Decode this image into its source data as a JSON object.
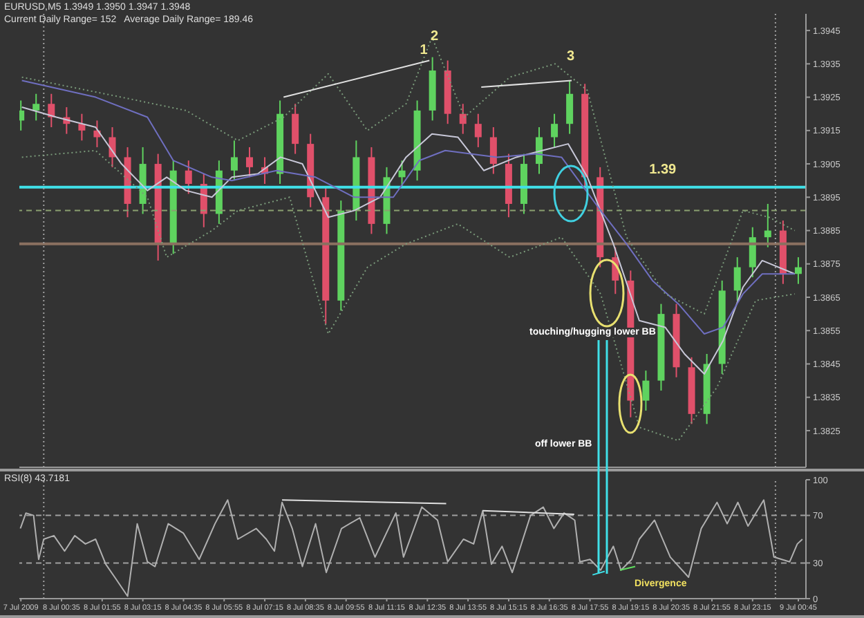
{
  "chart_data": [
    {
      "type": "candlestick",
      "title": "EURUSD,M5 1.3949 1.3950 1.3947 1.3948",
      "subtitle": "Current Daily Range= 152   Average Daily Range= 189.46",
      "x": [
        "2009-07-07T23:15",
        "2009-07-07T23:45",
        "2009-07-08T00:15",
        "2009-07-08T00:45",
        "2009-07-08T01:15",
        "2009-07-08T01:45",
        "2009-07-08T02:15",
        "2009-07-08T02:45",
        "2009-07-08T03:15",
        "2009-07-08T03:45",
        "2009-07-08T04:15",
        "2009-07-08T04:45",
        "2009-07-08T05:15",
        "2009-07-08T05:45",
        "2009-07-08T06:15",
        "2009-07-08T06:45",
        "2009-07-08T07:15",
        "2009-07-08T07:45",
        "2009-07-08T08:15",
        "2009-07-08T08:45",
        "2009-07-08T09:15",
        "2009-07-08T09:45",
        "2009-07-08T10:15",
        "2009-07-08T10:45",
        "2009-07-08T11:15",
        "2009-07-08T11:45",
        "2009-07-08T12:15",
        "2009-07-08T12:45",
        "2009-07-08T13:15",
        "2009-07-08T13:45",
        "2009-07-08T14:15",
        "2009-07-08T14:45",
        "2009-07-08T15:15",
        "2009-07-08T15:45",
        "2009-07-08T16:15",
        "2009-07-08T16:45",
        "2009-07-08T17:15",
        "2009-07-08T17:45",
        "2009-07-08T18:15",
        "2009-07-08T18:45",
        "2009-07-08T19:15",
        "2009-07-08T19:45",
        "2009-07-08T20:15",
        "2009-07-08T20:45",
        "2009-07-08T21:15",
        "2009-07-08T21:45",
        "2009-07-08T22:15",
        "2009-07-08T22:45",
        "2009-07-08T23:15",
        "2009-07-08T23:45",
        "2009-07-09T00:15",
        "2009-07-09T00:45"
      ],
      "ohlc": [
        [
          1.3918,
          1.3924,
          1.3915,
          1.3921
        ],
        [
          1.3921,
          1.3926,
          1.3918,
          1.3923
        ],
        [
          1.3923,
          1.3926,
          1.3916,
          1.3919
        ],
        [
          1.3919,
          1.3922,
          1.3914,
          1.3917
        ],
        [
          1.3917,
          1.392,
          1.3912,
          1.3915
        ],
        [
          1.3915,
          1.3918,
          1.391,
          1.3913
        ],
        [
          1.3913,
          1.3916,
          1.3904,
          1.3907
        ],
        [
          1.3907,
          1.391,
          1.3889,
          1.3893
        ],
        [
          1.3893,
          1.391,
          1.389,
          1.3905
        ],
        [
          1.3905,
          1.3908,
          1.3876,
          1.3881
        ],
        [
          1.3881,
          1.3906,
          1.3878,
          1.3903
        ],
        [
          1.3903,
          1.3906,
          1.3896,
          1.3899
        ],
        [
          1.3899,
          1.3902,
          1.3886,
          1.389
        ],
        [
          1.389,
          1.3906,
          1.3887,
          1.3903
        ],
        [
          1.3903,
          1.3912,
          1.39,
          1.3907
        ],
        [
          1.3907,
          1.391,
          1.3901,
          1.3904
        ],
        [
          1.3904,
          1.3907,
          1.3899,
          1.3902
        ],
        [
          1.3902,
          1.3924,
          1.3899,
          1.392
        ],
        [
          1.392,
          1.3923,
          1.3908,
          1.3911
        ],
        [
          1.3911,
          1.3914,
          1.3892,
          1.3895
        ],
        [
          1.3895,
          1.3898,
          1.3857,
          1.3864
        ],
        [
          1.3864,
          1.3894,
          1.3861,
          1.3891
        ],
        [
          1.3891,
          1.3912,
          1.3888,
          1.3907
        ],
        [
          1.3907,
          1.391,
          1.3884,
          1.3887
        ],
        [
          1.3887,
          1.3904,
          1.3884,
          1.3901
        ],
        [
          1.3901,
          1.3906,
          1.3898,
          1.3903
        ],
        [
          1.3903,
          1.3924,
          1.39,
          1.3921
        ],
        [
          1.3921,
          1.3937,
          1.3918,
          1.3933
        ],
        [
          1.3933,
          1.3936,
          1.3917,
          1.392
        ],
        [
          1.392,
          1.3923,
          1.3914,
          1.3917
        ],
        [
          1.3917,
          1.392,
          1.391,
          1.3913
        ],
        [
          1.3913,
          1.3916,
          1.3902,
          1.3905
        ],
        [
          1.3905,
          1.3908,
          1.3889,
          1.3893
        ],
        [
          1.3893,
          1.3908,
          1.389,
          1.3905
        ],
        [
          1.3905,
          1.3916,
          1.3902,
          1.3913
        ],
        [
          1.3913,
          1.392,
          1.391,
          1.3917
        ],
        [
          1.3917,
          1.393,
          1.3914,
          1.3926
        ],
        [
          1.3926,
          1.3929,
          1.3898,
          1.3901
        ],
        [
          1.3901,
          1.3904,
          1.3874,
          1.3877
        ],
        [
          1.3877,
          1.388,
          1.3866,
          1.387
        ],
        [
          1.387,
          1.3873,
          1.3829,
          1.3834
        ],
        [
          1.3834,
          1.3843,
          1.3831,
          1.384
        ],
        [
          1.384,
          1.3863,
          1.3837,
          1.386
        ],
        [
          1.386,
          1.3863,
          1.3841,
          1.3844
        ],
        [
          1.3844,
          1.3847,
          1.3827,
          1.383
        ],
        [
          1.383,
          1.3848,
          1.3827,
          1.3845
        ],
        [
          1.3845,
          1.387,
          1.3842,
          1.3867
        ],
        [
          1.3867,
          1.3877,
          1.3864,
          1.3874
        ],
        [
          1.3874,
          1.3886,
          1.3871,
          1.3883
        ],
        [
          1.3883,
          1.3893,
          1.388,
          1.3885
        ],
        [
          1.3885,
          1.3888,
          1.3869,
          1.3872
        ],
        [
          1.3872,
          1.3877,
          1.3869,
          1.3874
        ]
      ],
      "colors": [
        "#5fd35f",
        "#5fd35f",
        "#e0506a",
        "#e0506a",
        "#e0506a",
        "#e0506a",
        "#e0506a",
        "#e0506a",
        "#5fd35f",
        "#e0506a",
        "#5fd35f",
        "#e0506a",
        "#e0506a",
        "#5fd35f",
        "#5fd35f",
        "#e0506a",
        "#e0506a",
        "#5fd35f",
        "#e0506a",
        "#e0506a",
        "#e0506a",
        "#5fd35f",
        "#5fd35f",
        "#e0506a",
        "#5fd35f",
        "#5fd35f",
        "#5fd35f",
        "#5fd35f",
        "#e0506a",
        "#e0506a",
        "#e0506a",
        "#e0506a",
        "#e0506a",
        "#5fd35f",
        "#5fd35f",
        "#5fd35f",
        "#5fd35f",
        "#e0506a",
        "#e0506a",
        "#e0506a",
        "#e0506a",
        "#5fd35f",
        "#5fd35f",
        "#e0506a",
        "#e0506a",
        "#5fd35f",
        "#5fd35f",
        "#5fd35f",
        "#5fd35f",
        "#5fd35f",
        "#e0506a",
        "#5fd35f"
      ],
      "series": [
        {
          "type": "line",
          "color": "#c8c8d8",
          "x": [
            "2009-07-07T23:17",
            "2009-07-08T00:25",
            "2009-07-08T01:42",
            "2009-07-08T02:33",
            "2009-07-08T03:24",
            "2009-07-08T04:02",
            "2009-07-08T04:40",
            "2009-07-08T05:31",
            "2009-07-08T06:10",
            "2009-07-08T07:01",
            "2009-07-08T07:46",
            "2009-07-08T08:29",
            "2009-07-08T09:20",
            "2009-07-08T10:11",
            "2009-07-08T11:02",
            "2009-07-08T11:53",
            "2009-07-08T12:44",
            "2009-07-08T13:35",
            "2009-07-08T14:26",
            "2009-07-08T15:30",
            "2009-07-08T16:21",
            "2009-07-08T17:12",
            "2009-07-08T17:50",
            "2009-07-08T18:41",
            "2009-07-08T19:32",
            "2009-07-08T20:23",
            "2009-07-08T21:01",
            "2009-07-08T21:40",
            "2009-07-08T22:17",
            "2009-07-08T22:56",
            "2009-07-08T23:34",
            "2009-07-09T00:38"
          ],
          "values": [
            1.3922,
            1.3919,
            1.3916,
            1.3905,
            1.3897,
            1.3901,
            1.3897,
            1.3895,
            1.3901,
            1.3902,
            1.3907,
            1.3905,
            1.3889,
            1.3891,
            1.3895,
            1.3907,
            1.3914,
            1.3913,
            1.3903,
            1.3907,
            1.3909,
            1.3911,
            1.3901,
            1.3881,
            1.3858,
            1.3856,
            1.3848,
            1.3842,
            1.3852,
            1.3868,
            1.3876,
            1.3872
          ]
        },
        {
          "type": "line",
          "color": "#6f6fc0",
          "x": [
            "2009-07-07T23:17",
            "2009-07-08T01:42",
            "2009-07-08T03:24",
            "2009-07-08T04:15",
            "2009-07-08T05:31",
            "2009-07-08T06:10",
            "2009-07-08T07:38",
            "2009-07-08T08:55",
            "2009-07-08T10:11",
            "2009-07-08T11:28",
            "2009-07-08T12:19",
            "2009-07-08T13:10",
            "2009-07-08T14:52",
            "2009-07-08T16:08",
            "2009-07-08T16:59",
            "2009-07-08T18:16",
            "2009-07-08T19:07",
            "2009-07-08T19:58",
            "2009-07-08T20:49",
            "2009-07-08T21:40",
            "2009-07-08T22:17",
            "2009-07-08T22:56",
            "2009-07-08T23:34",
            "2009-07-09T00:38"
          ],
          "values": [
            1.393,
            1.3925,
            1.3919,
            1.3906,
            1.3901,
            1.39,
            1.3903,
            1.3901,
            1.3895,
            1.3895,
            1.3906,
            1.3909,
            1.3907,
            1.3908,
            1.3907,
            1.3891,
            1.3881,
            1.387,
            1.3863,
            1.3854,
            1.3856,
            1.3866,
            1.3872,
            1.3872
          ]
        },
        {
          "type": "line",
          "color": "#7a9a7a",
          "line_style": "dotted",
          "x": [
            "2009-07-07T23:17",
            "2009-07-08T02:33",
            "2009-07-08T04:40",
            "2009-07-08T06:22",
            "2009-07-08T07:52",
            "2009-07-08T09:20",
            "2009-07-08T10:37",
            "2009-07-08T11:53",
            "2009-07-08T12:44",
            "2009-07-08T13:48",
            "2009-07-08T15:17",
            "2009-07-08T16:46",
            "2009-07-08T17:50",
            "2009-07-08T19:07",
            "2009-07-08T20:23",
            "2009-07-08T21:40",
            "2009-07-08T22:56",
            "2009-07-08T23:47",
            "2009-07-09T00:38"
          ],
          "values": [
            1.3931,
            1.3925,
            1.3921,
            1.3912,
            1.3919,
            1.3932,
            1.3915,
            1.3923,
            1.3943,
            1.3919,
            1.3931,
            1.3935,
            1.3927,
            1.3883,
            1.3866,
            1.386,
            1.3891,
            1.3889,
            1.3885
          ]
        },
        {
          "type": "line",
          "color": "#7a9a7a",
          "line_style": "dotted",
          "x": [
            "2009-07-07T23:17",
            "2009-07-08T01:42",
            "2009-07-08T03:24",
            "2009-07-08T04:02",
            "2009-07-08T05:31",
            "2009-07-08T06:22",
            "2009-07-08T08:04",
            "2009-07-08T09:20",
            "2009-07-08T10:37",
            "2009-07-08T11:53",
            "2009-07-08T13:35",
            "2009-07-08T15:17",
            "2009-07-08T16:59",
            "2009-07-08T18:16",
            "2009-07-08T19:32",
            "2009-07-08T20:49",
            "2009-07-08T22:05",
            "2009-07-08T23:21",
            "2009-07-09T00:38"
          ],
          "values": [
            1.3907,
            1.3909,
            1.3895,
            1.3877,
            1.3885,
            1.3891,
            1.3895,
            1.3854,
            1.3874,
            1.3881,
            1.3887,
            1.3877,
            1.3883,
            1.3866,
            1.3826,
            1.3822,
            1.3838,
            1.3864,
            1.3866
          ]
        },
        {
          "type": "line",
          "color": "#e0e0e0",
          "x": [
            "2009-07-08T07:52",
            "2009-07-08T12:39"
          ],
          "values": [
            1.3925,
            1.3936
          ]
        },
        {
          "type": "line",
          "color": "#e0e0e0",
          "x": [
            "2009-07-08T14:21",
            "2009-07-08T17:19"
          ],
          "values": [
            1.3928,
            1.393
          ]
        }
      ],
      "xlim": [
        "2009-07-07T23:12",
        "2009-07-09T01:00"
      ],
      "ylim": [
        1.3814,
        1.395
      ],
      "yticks": [
        1.3825,
        1.3835,
        1.3845,
        1.3855,
        1.3865,
        1.3875,
        1.3885,
        1.3895,
        1.3905,
        1.3915,
        1.3925,
        1.3935,
        1.3945
      ],
      "tick_labels": "y",
      "ref_lines": [
        {
          "axis": "y",
          "value": 1.3898,
          "color": "#40e0e8"
        },
        {
          "axis": "y",
          "value": 1.3891,
          "color": "#8aa070",
          "line_style": "dashed"
        },
        {
          "axis": "y",
          "value": 1.3881,
          "color": "#8a7060"
        },
        {
          "axis": "x",
          "value": "2009-07-08T00:00",
          "color": "#a0a0a0",
          "line_style": "dotted"
        },
        {
          "axis": "x",
          "value": "2009-07-09T00:00",
          "color": "#a0a0a0",
          "line_style": "dotted"
        }
      ],
      "annotations": [
        {
          "text": "1",
          "x": "2009-07-08T12:28",
          "y": 1.3936
        },
        {
          "text": "2",
          "x": "2009-07-08T12:49",
          "y": 1.394
        },
        {
          "text": "3",
          "x": "2009-07-08T17:17",
          "y": 1.3934
        },
        {
          "text": "1.39",
          "x": "2009-07-08T20:18",
          "y": 1.39
        },
        "touching/hugging lower BB",
        "off lower BB"
      ]
    },
    {
      "type": "line",
      "title": "RSI(8) 43.7181",
      "series": [
        {
          "color": "#b0b0b0",
          "x": [
            "2009-07-07T23:14",
            "2009-07-07T23:25",
            "2009-07-07T23:40",
            "2009-07-07T23:50",
            "2009-07-08T00:00",
            "2009-07-08T00:20",
            "2009-07-08T00:41",
            "2009-07-08T01:01",
            "2009-07-08T01:22",
            "2009-07-08T01:42",
            "2009-07-08T02:02",
            "2009-07-08T02:23",
            "2009-07-08T02:45",
            "2009-07-08T03:04",
            "2009-07-08T03:24",
            "2009-07-08T03:39",
            "2009-07-08T04:05",
            "2009-07-08T04:35",
            "2009-07-08T05:06",
            "2009-07-08T05:37",
            "2009-07-08T06:02",
            "2009-07-08T06:22",
            "2009-07-08T06:58",
            "2009-07-08T07:18",
            "2009-07-08T07:34",
            "2009-07-08T07:49",
            "2009-07-08T08:09",
            "2009-07-08T08:29",
            "2009-07-08T08:55",
            "2009-07-08T09:16",
            "2009-07-08T09:46",
            "2009-07-08T10:22",
            "2009-07-08T10:52",
            "2009-07-08T11:33",
            "2009-07-08T11:48",
            "2009-07-08T12:24",
            "2009-07-08T12:55",
            "2009-07-08T13:15",
            "2009-07-08T13:46",
            "2009-07-08T14:06",
            "2009-07-08T14:24",
            "2009-07-08T14:41",
            "2009-07-08T15:02",
            "2009-07-08T15:22",
            "2009-07-08T15:58",
            "2009-07-08T16:23",
            "2009-07-08T16:44",
            "2009-07-08T17:04",
            "2009-07-08T17:25",
            "2009-07-08T17:35",
            "2009-07-08T17:55",
            "2009-07-08T18:16",
            "2009-07-08T18:41",
            "2009-07-08T18:56",
            "2009-07-08T19:17",
            "2009-07-08T19:32",
            "2009-07-08T20:02",
            "2009-07-08T20:33",
            "2009-07-08T21:09",
            "2009-07-08T21:34",
            "2009-07-08T22:05",
            "2009-07-08T22:25",
            "2009-07-08T22:46",
            "2009-07-08T23:06",
            "2009-07-08T23:37",
            "2009-07-08T23:57",
            "2009-07-09T00:28",
            "2009-07-09T00:43",
            "2009-07-09T00:53"
          ],
          "values": [
            59,
            72,
            70,
            33,
            50,
            53,
            40,
            53,
            46,
            50,
            29,
            16,
            2,
            63,
            31,
            27,
            63,
            55,
            33,
            63,
            83,
            50,
            59,
            50,
            40,
            81,
            59,
            27,
            63,
            22,
            59,
            68,
            35,
            72,
            35,
            77,
            66,
            31,
            50,
            46,
            74,
            29,
            44,
            22,
            70,
            77,
            59,
            72,
            66,
            31,
            33,
            24,
            44,
            24,
            33,
            50,
            66,
            35,
            18,
            59,
            81,
            63,
            81,
            61,
            83,
            35,
            31,
            46,
            50
          ]
        },
        {
          "color": "#e0e0e0",
          "x": [
            "2009-07-08T07:49",
            "2009-07-08T13:12"
          ],
          "values": [
            83,
            80
          ]
        },
        {
          "color": "#e0e0e0",
          "x": [
            "2009-07-08T14:24",
            "2009-07-08T17:24"
          ],
          "values": [
            74,
            71
          ]
        },
        {
          "color": "#40e0e8",
          "x": [
            "2009-07-08T18:00",
            "2009-07-08T18:24"
          ],
          "values": [
            20,
            23
          ]
        },
        {
          "color": "#60e060",
          "x": [
            "2009-07-08T18:54",
            "2009-07-08T19:24"
          ],
          "values": [
            24,
            27
          ]
        }
      ],
      "xlim": [
        "2009-07-07T23:12",
        "2009-07-09T01:00"
      ],
      "ylim": [
        0,
        100
      ],
      "yticks": [
        0,
        30,
        70,
        100
      ],
      "xticks": [
        {
          "value": "2009-07-07T23:15",
          "label": "7 Jul 2009"
        },
        {
          "value": "2009-07-08T00:35",
          "label": "8 Jul 00:35"
        },
        {
          "value": "2009-07-08T01:55",
          "label": "8 Jul 01:55"
        },
        {
          "value": "2009-07-08T03:15",
          "label": "8 Jul 03:15"
        },
        {
          "value": "2009-07-08T04:35",
          "label": "8 Jul 04:35"
        },
        {
          "value": "2009-07-08T05:55",
          "label": "8 Jul 05:55"
        },
        {
          "value": "2009-07-08T07:15",
          "label": "8 Jul 07:15"
        },
        {
          "value": "2009-07-08T08:35",
          "label": "8 Jul 08:35"
        },
        {
          "value": "2009-07-08T09:55",
          "label": "8 Jul 09:55"
        },
        {
          "value": "2009-07-08T11:15",
          "label": "8 Jul 11:15"
        },
        {
          "value": "2009-07-08T12:35",
          "label": "8 Jul 12:35"
        },
        {
          "value": "2009-07-08T13:55",
          "label": "8 Jul 13:55"
        },
        {
          "value": "2009-07-08T15:15",
          "label": "8 Jul 15:15"
        },
        {
          "value": "2009-07-08T16:35",
          "label": "8 Jul 16:35"
        },
        {
          "value": "2009-07-08T17:55",
          "label": "8 Jul 17:55"
        },
        {
          "value": "2009-07-08T19:15",
          "label": "8 Jul 19:15"
        },
        {
          "value": "2009-07-08T20:35",
          "label": "8 Jul 20:35"
        },
        {
          "value": "2009-07-08T21:55",
          "label": "8 Jul 21:55"
        },
        {
          "value": "2009-07-08T23:15",
          "label": "8 Jul 23:15"
        },
        {
          "value": "2009-07-09T00:45",
          "label": "9 Jul 00:45"
        }
      ],
      "ref_lines": [
        {
          "axis": "y",
          "value": 70,
          "color": "#a0a0a0",
          "line_style": "dashed"
        },
        {
          "axis": "y",
          "value": 30,
          "color": "#a0a0a0",
          "line_style": "dashed"
        },
        {
          "axis": "x",
          "value": "2009-07-08T00:00",
          "color": "#a0a0a0",
          "line_style": "dotted"
        },
        {
          "axis": "x",
          "value": "2009-07-09T00:00",
          "color": "#a0a0a0",
          "line_style": "dotted"
        }
      ],
      "annotations": [
        "Divergence"
      ]
    }
  ]
}
